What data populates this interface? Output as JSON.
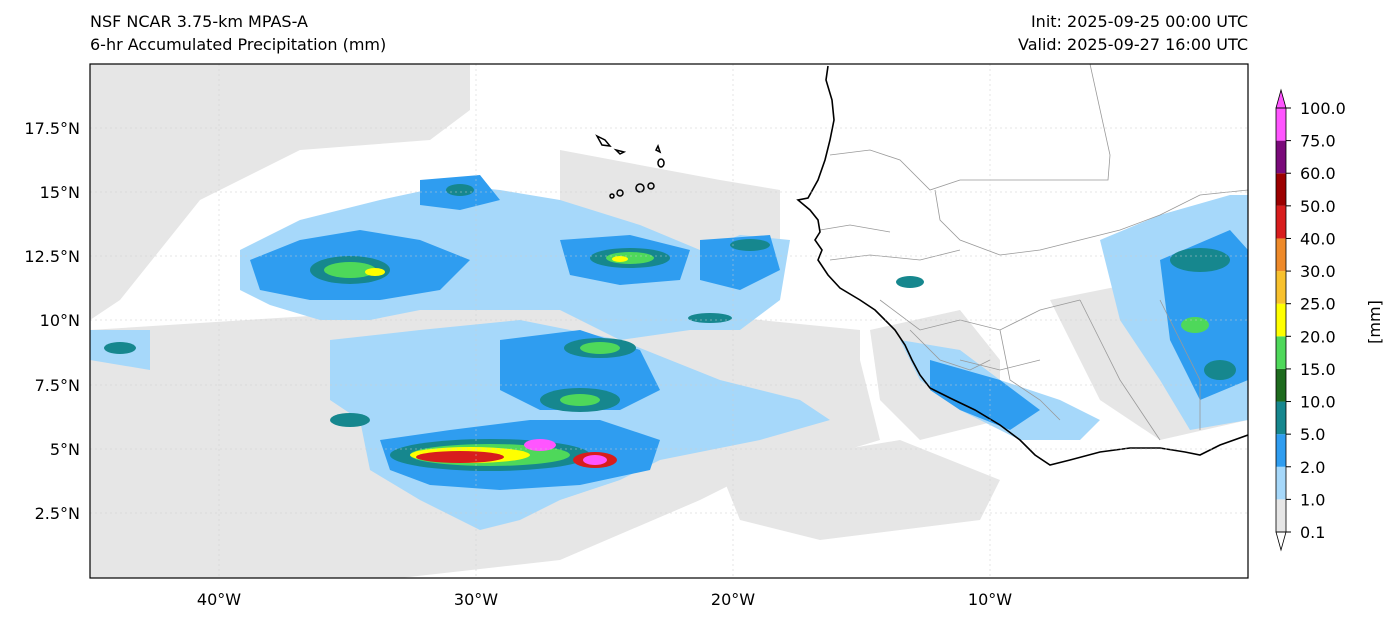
{
  "header": {
    "title_line1": "NSF NCAR 3.75-km MPAS-A",
    "title_line2": "6-hr Accumulated Precipitation (mm)",
    "init": "Init: 2025-09-25 00:00 UTC",
    "valid": "Valid: 2025-09-27 16:00 UTC"
  },
  "map": {
    "lon_ticks": [
      "40°W",
      "30°W",
      "20°W",
      "10°W"
    ],
    "lat_ticks": [
      "17.5°N",
      "15°N",
      "12.5°N",
      "10°N",
      "7.5°N",
      "5°N",
      "2.5°N"
    ],
    "ocean_color": "#ffffff",
    "coastline_color": "#000000",
    "border_color": "#999999"
  },
  "colorbar": {
    "unit_label": "[mm]",
    "levels": [
      "0.1",
      "1.0",
      "2.0",
      "5.0",
      "10.0",
      "15.0",
      "20.0",
      "25.0",
      "30.0",
      "40.0",
      "50.0",
      "60.0",
      "75.0",
      "100.0"
    ],
    "colors": [
      "#e6e6e6",
      "#a6d8fa",
      "#2f9df0",
      "#16878e",
      "#1e6b1e",
      "#4ed85a",
      "#ffff00",
      "#f8c12d",
      "#ee8a2a",
      "#d81d1d",
      "#9c0000",
      "#7a0a7a",
      "#ff55ff"
    ]
  }
}
